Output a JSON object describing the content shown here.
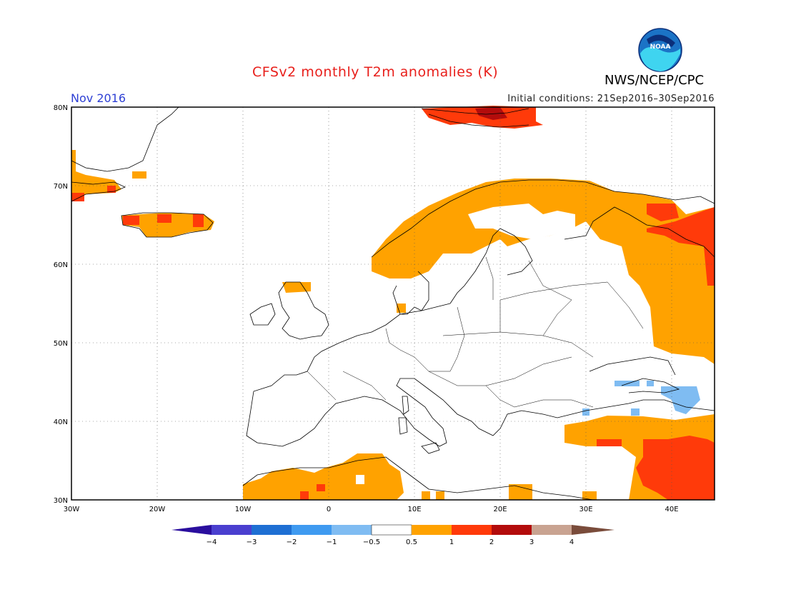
{
  "header": {
    "title": "CFSv2 monthly T2m anomalies (K)",
    "agency": "NWS/NCEP/CPC",
    "month": "Nov 2016",
    "initial_conditions": "Initial conditions: 21Sep2016–30Sep2016"
  },
  "logo": {
    "text": "NOAA",
    "icon": "noaa-logo-icon"
  },
  "map": {
    "projection": "lat-lon",
    "lon_range": [
      -30,
      45
    ],
    "lat_range": [
      30,
      80
    ],
    "x_ticks": [
      "30W",
      "20W",
      "10W",
      "0",
      "10E",
      "20E",
      "30E",
      "40E"
    ],
    "y_ticks": [
      "80N",
      "70N",
      "60N",
      "50N",
      "40N",
      "30N"
    ],
    "grid": "dotted"
  },
  "colorbar": {
    "labels": [
      "−4",
      "−3",
      "−2",
      "−1",
      "−0.5",
      "0.5",
      "1",
      "2",
      "3",
      "4"
    ],
    "colors": [
      "#2a0e9e",
      "#4a3fcf",
      "#1e6fd3",
      "#3f9af0",
      "#7fbcf2",
      "#ffffff",
      "#ffa200",
      "#ff3a0a",
      "#b30c0c",
      "#c9a391",
      "#7a4c3b"
    ]
  },
  "anomaly_colors": {
    "warm_05_1": "#ffa200",
    "warm_1_2": "#ff3a0a",
    "warm_2_3": "#b30c0c",
    "cool_05_1": "#7fbcf2"
  }
}
